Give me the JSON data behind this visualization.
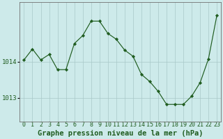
{
  "x": [
    0,
    1,
    2,
    3,
    4,
    5,
    6,
    7,
    8,
    9,
    10,
    11,
    12,
    13,
    14,
    15,
    16,
    17,
    18,
    19,
    20,
    21,
    22,
    23
  ],
  "y": [
    1014.05,
    1014.35,
    1014.05,
    1014.2,
    1013.78,
    1013.78,
    1014.5,
    1014.72,
    1015.12,
    1015.12,
    1014.78,
    1014.62,
    1014.32,
    1014.15,
    1013.65,
    1013.45,
    1013.18,
    1012.82,
    1012.82,
    1012.82,
    1013.05,
    1013.42,
    1014.08,
    1015.28
  ],
  "line_color": "#1f5c1f",
  "marker_color": "#1f5c1f",
  "bg_color": "#cdeaea",
  "grid_major_color": "#a8c8c8",
  "grid_minor_color": "#b8d4d4",
  "spine_color": "#707070",
  "label_color": "#1f5c1f",
  "ytick_labels": [
    "1013",
    "1014"
  ],
  "ytick_vals": [
    1013,
    1014
  ],
  "ylim": [
    1012.35,
    1015.65
  ],
  "xlim": [
    -0.5,
    23.5
  ],
  "xlabel": "Graphe pression niveau de la mer (hPa)",
  "xlabel_fontsize": 7.5,
  "tick_fontsize": 6.0
}
